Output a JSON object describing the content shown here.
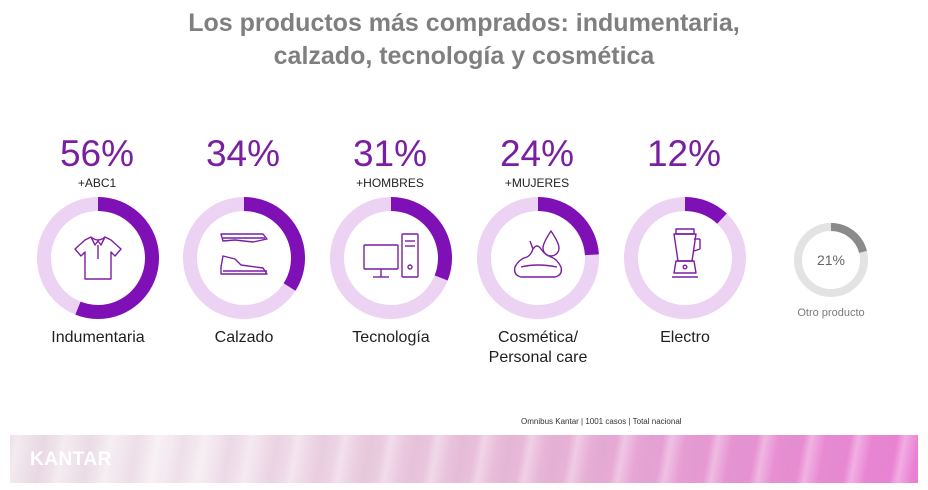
{
  "title_line1": "Los productos más comprados: indumentaria,",
  "title_line2": "calzado, tecnología y cosmética",
  "colors": {
    "filled": "#7e10b6",
    "track": "#ecd2f3",
    "other_filled": "#8a8a8a",
    "other_track": "#e3e3e3"
  },
  "chart_data": {
    "type": "donut",
    "categories": [
      {
        "label_line1": "Indumentaria",
        "label_line2": "",
        "value": 56,
        "value_text": "56%",
        "note": "+ABC1",
        "icon": "shirt-icon"
      },
      {
        "label_line1": "Calzado",
        "label_line2": "",
        "value": 34,
        "value_text": "34%",
        "note": "",
        "icon": "shoes-icon"
      },
      {
        "label_line1": "Tecnología",
        "label_line2": "",
        "value": 31,
        "value_text": "31%",
        "note": "+HOMBRES",
        "icon": "computer-icon"
      },
      {
        "label_line1": "Cosmética/",
        "label_line2": "Personal care",
        "value": 24,
        "value_text": "24%",
        "note": "+MUJERES",
        "icon": "cream-drop-icon"
      },
      {
        "label_line1": "Electro",
        "label_line2": "",
        "value": 12,
        "value_text": "12%",
        "note": "",
        "icon": "blender-icon"
      }
    ],
    "other": {
      "label": "Otro producto",
      "value": 21,
      "value_text": "21%"
    }
  },
  "source": "Omnibus Kantar | 1001 casos | Total nacional",
  "brand": "KANTAR"
}
